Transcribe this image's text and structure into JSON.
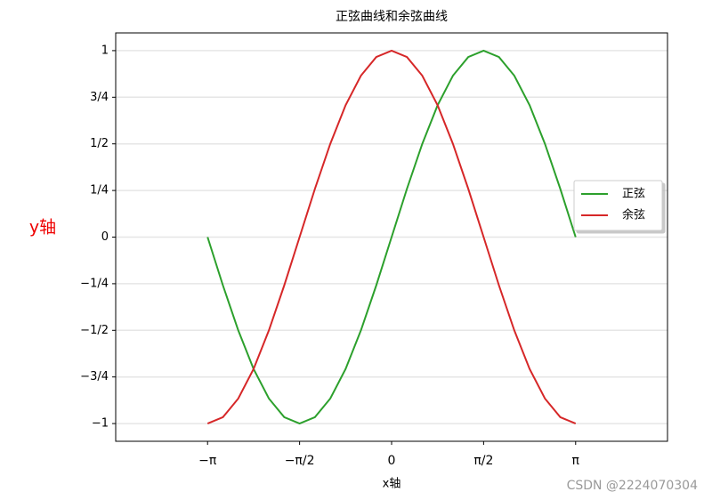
{
  "chart_data": {
    "type": "line",
    "title": "正弦曲线和余弦曲线",
    "xlabel": "x轴",
    "ylabel": "y轴",
    "watermark": "CSDN @2224070304",
    "x": [
      -3.1416,
      -2.8798,
      -2.618,
      -2.3562,
      -2.0944,
      -1.8326,
      -1.5708,
      -1.309,
      -1.0472,
      -0.7854,
      -0.5236,
      -0.2618,
      0,
      0.2618,
      0.5236,
      0.7854,
      1.0472,
      1.309,
      1.5708,
      1.8326,
      2.0944,
      2.3562,
      2.618,
      2.8798,
      3.1416
    ],
    "series": [
      {
        "name": "正弦",
        "color": "#2ca02c",
        "values": [
          0,
          -0.2588,
          -0.5,
          -0.7071,
          -0.866,
          -0.9659,
          -1,
          -0.9659,
          -0.866,
          -0.7071,
          -0.5,
          -0.2588,
          0,
          0.2588,
          0.5,
          0.7071,
          0.866,
          0.9659,
          1,
          0.9659,
          0.866,
          0.7071,
          0.5,
          0.2588,
          0
        ]
      },
      {
        "name": "余弦",
        "color": "#d62728",
        "values": [
          -1,
          -0.9659,
          -0.866,
          -0.7071,
          -0.5,
          -0.2588,
          0,
          0.2588,
          0.5,
          0.7071,
          0.866,
          0.9659,
          1,
          0.9659,
          0.866,
          0.7071,
          0.5,
          0.2588,
          0,
          -0.2588,
          -0.5,
          -0.7071,
          -0.866,
          -0.9659,
          -1
        ]
      }
    ],
    "xlim": [
      -4.71,
      4.71
    ],
    "ylim": [
      -1.095,
      1.095
    ],
    "xticks": [
      {
        "value": -3.1416,
        "label": "−π"
      },
      {
        "value": -1.5708,
        "label": "−π/2"
      },
      0,
      {
        "value": 1.5708,
        "label": "π/2"
      },
      {
        "value": 3.1416,
        "label": "π"
      }
    ],
    "yticks": [
      {
        "value": -1,
        "label": "−1"
      },
      {
        "value": -0.75,
        "label": "−3/4"
      },
      {
        "value": -0.5,
        "label": "−1/2"
      },
      {
        "value": -0.25,
        "label": "−1/4"
      },
      0,
      {
        "value": 0.25,
        "label": "1/4"
      },
      {
        "value": 0.5,
        "label": "1/2"
      },
      {
        "value": 0.75,
        "label": "3/4"
      },
      1
    ],
    "grid": true,
    "legend": "right"
  }
}
